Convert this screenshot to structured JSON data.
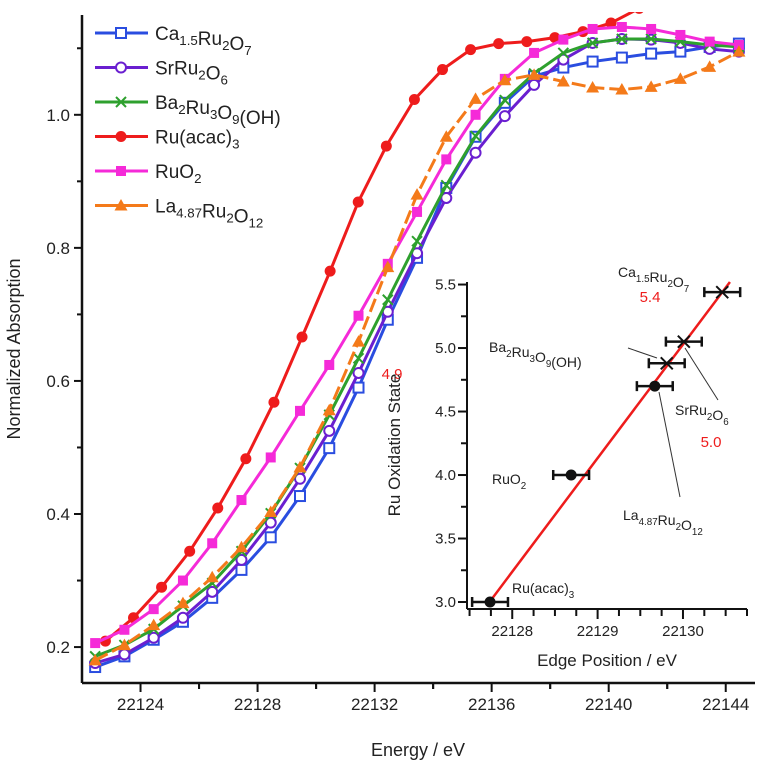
{
  "chart_data": [
    {
      "type": "line",
      "xlabel": "Energy / eV",
      "ylabel": "Normalized Absorption",
      "xlim": [
        22122.0,
        22145.0
      ],
      "ylim": [
        0.146,
        1.15
      ],
      "xticks": [
        22124,
        22128,
        22132,
        22136,
        22140,
        22144
      ],
      "yticks": [
        0.2,
        0.4,
        0.6,
        0.8,
        1.0
      ],
      "ytick_labels": [
        "0.2",
        "0.4",
        "0.6",
        "0.8",
        "1.0"
      ],
      "grid": false,
      "legend_placement": "top-left",
      "series": [
        {
          "name": "Ca1.5Ru2O7",
          "name_parts": [
            {
              "t": "Ca"
            },
            {
              "t": "1.5",
              "sub": true
            },
            {
              "t": "Ru"
            },
            {
              "t": "2",
              "sub": true
            },
            {
              "t": "O"
            },
            {
              "t": "7",
              "sub": true
            }
          ],
          "color": "#2a4de0",
          "marker": "open-square",
          "x_start": 22122.45,
          "x_step": 1.0,
          "values": [
            0.17,
            0.186,
            0.211,
            0.238,
            0.274,
            0.316,
            0.365,
            0.427,
            0.499,
            0.59,
            0.692,
            0.785,
            0.89,
            0.967,
            1.018,
            1.058,
            1.071,
            1.08,
            1.086,
            1.092,
            1.095,
            1.102,
            1.107
          ]
        },
        {
          "name": "SrRu2O6",
          "name_parts": [
            {
              "t": "SrRu"
            },
            {
              "t": "2",
              "sub": true
            },
            {
              "t": "O"
            },
            {
              "t": "6",
              "sub": true
            }
          ],
          "color": "#6a1fd0",
          "marker": "open-circle",
          "x_start": 22122.45,
          "x_step": 1.0,
          "values": [
            0.176,
            0.189,
            0.214,
            0.244,
            0.283,
            0.331,
            0.387,
            0.453,
            0.525,
            0.612,
            0.704,
            0.792,
            0.875,
            0.943,
            0.998,
            1.045,
            1.083,
            1.108,
            1.114,
            1.113,
            1.108,
            1.099,
            1.095
          ]
        },
        {
          "name": "Ba2Ru3O9(OH)",
          "name_parts": [
            {
              "t": "Ba"
            },
            {
              "t": "2",
              "sub": true
            },
            {
              "t": "Ru"
            },
            {
              "t": "3",
              "sub": true
            },
            {
              "t": "O"
            },
            {
              "t": "9",
              "sub": true
            },
            {
              "t": "(OH)"
            }
          ],
          "color": "#2ea02e",
          "marker": "x",
          "x_start": 22122.45,
          "x_step": 1.0,
          "values": [
            0.186,
            0.203,
            0.227,
            0.262,
            0.296,
            0.344,
            0.401,
            0.469,
            0.549,
            0.634,
            0.722,
            0.81,
            0.894,
            0.968,
            1.022,
            1.062,
            1.093,
            1.108,
            1.114,
            1.114,
            1.11,
            1.105,
            1.102
          ]
        },
        {
          "name": "Ru(acac)3",
          "name_parts": [
            {
              "t": "Ru(acac)"
            },
            {
              "t": "3",
              "sub": true
            }
          ],
          "color": "#ee1c1c",
          "marker": "filled-circle",
          "x_start": 22122.8,
          "x_step": 0.96,
          "values": [
            0.209,
            0.244,
            0.29,
            0.344,
            0.409,
            0.483,
            0.568,
            0.666,
            0.765,
            0.869,
            0.953,
            1.023,
            1.068,
            1.098,
            1.107,
            1.11,
            1.116,
            1.125,
            1.138,
            1.16
          ]
        },
        {
          "name": "RuO2",
          "name_parts": [
            {
              "t": "RuO"
            },
            {
              "t": "2",
              "sub": true
            }
          ],
          "color": "#f52ad8",
          "marker": "filled-square",
          "x_start": 22122.45,
          "x_step": 1.0,
          "values": [
            0.206,
            0.226,
            0.257,
            0.3,
            0.356,
            0.421,
            0.485,
            0.555,
            0.624,
            0.698,
            0.776,
            0.854,
            0.933,
            1.0,
            1.054,
            1.093,
            1.113,
            1.129,
            1.132,
            1.129,
            1.12,
            1.11,
            1.105
          ]
        },
        {
          "name": "La4.87Ru2O12",
          "name_parts": [
            {
              "t": "La"
            },
            {
              "t": "4.87",
              "sub": true
            },
            {
              "t": "Ru"
            },
            {
              "t": "2",
              "sub": true
            },
            {
              "t": "O"
            },
            {
              "t": "12",
              "sub": true
            }
          ],
          "color": "#f47a1a",
          "marker": "filled-triangle",
          "x_start": 22122.45,
          "x_step": 1.0,
          "values": [
            0.18,
            0.203,
            0.233,
            0.266,
            0.305,
            0.35,
            0.403,
            0.47,
            0.556,
            0.659,
            0.771,
            0.88,
            0.967,
            1.024,
            1.052,
            1.06,
            1.05,
            1.041,
            1.038,
            1.042,
            1.054,
            1.072,
            1.095
          ]
        }
      ]
    },
    {
      "type": "scatter",
      "xlabel": "Edge Position / eV",
      "ylabel": "Ru Oxidation State",
      "xlim": [
        22127.47,
        22130.75
      ],
      "ylim": [
        2.945,
        5.52
      ],
      "xticks": [
        22128,
        22129,
        22130
      ],
      "yticks": [
        3.0,
        3.5,
        4.0,
        4.5,
        5.0,
        5.5
      ],
      "ytick_labels": [
        "3.0",
        "3.5",
        "4.0",
        "4.5",
        "5.0",
        "5.5"
      ],
      "grid": false,
      "fit_line": {
        "color": "#ee1c1c",
        "from": [
          22127.7,
          2.97
        ],
        "to": [
          22130.55,
          5.52
        ]
      },
      "points": [
        {
          "label_parts": [
            {
              "t": "Ru(acac)"
            },
            {
              "t": "3",
              "sub": true
            }
          ],
          "x": 22127.74,
          "y": 3.0,
          "xerr": 0.21,
          "marker": "filled-circle",
          "value_label": ""
        },
        {
          "label_parts": [
            {
              "t": "RuO"
            },
            {
              "t": "2",
              "sub": true
            }
          ],
          "x": 22128.69,
          "y": 4.0,
          "xerr": 0.21,
          "marker": "filled-circle",
          "value_label": ""
        },
        {
          "label_parts": [
            {
              "t": "La"
            },
            {
              "t": "4.87",
              "sub": true
            },
            {
              "t": "Ru"
            },
            {
              "t": "2",
              "sub": true
            },
            {
              "t": "O"
            },
            {
              "t": "12",
              "sub": true
            }
          ],
          "x": 22129.67,
          "y": 4.7,
          "xerr": 0.21,
          "marker": "filled-circle",
          "value_label": ""
        },
        {
          "label_parts": [
            {
              "t": "Ba"
            },
            {
              "t": "2",
              "sub": true
            },
            {
              "t": "Ru"
            },
            {
              "t": "3",
              "sub": true
            },
            {
              "t": "O"
            },
            {
              "t": "9",
              "sub": true
            },
            {
              "t": "(OH)"
            }
          ],
          "x": 22129.81,
          "y": 4.88,
          "xerr": 0.21,
          "marker": "x",
          "value_label": "4.9"
        },
        {
          "label_parts": [
            {
              "t": "SrRu"
            },
            {
              "t": "2",
              "sub": true
            },
            {
              "t": "O"
            },
            {
              "t": "6",
              "sub": true
            }
          ],
          "x": 22130.01,
          "y": 5.05,
          "xerr": 0.21,
          "marker": "x",
          "value_label": "5.0"
        },
        {
          "label_parts": [
            {
              "t": "Ca"
            },
            {
              "t": "1.5",
              "sub": true
            },
            {
              "t": "Ru"
            },
            {
              "t": "2",
              "sub": true
            },
            {
              "t": "O"
            },
            {
              "t": "7",
              "sub": true
            }
          ],
          "x": 22130.46,
          "y": 5.44,
          "xerr": 0.21,
          "marker": "x",
          "value_label": "5.4"
        }
      ],
      "value_label_color": "#ee1c1c"
    }
  ]
}
